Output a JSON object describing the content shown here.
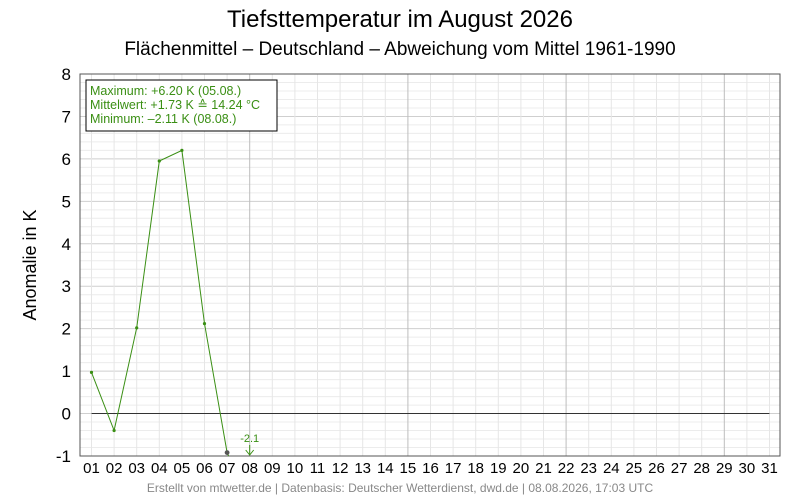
{
  "chart_data": {
    "type": "line",
    "title": "Tiefsttemperatur im August 2026",
    "subtitle": "Flächenmittel – Deutschland – Abweichung vom Mittel 1961-1990",
    "ylabel": "Anomalie in K",
    "xlabel": "",
    "ylim": [
      -1,
      8
    ],
    "yticks": [
      -1,
      0,
      1,
      2,
      3,
      4,
      5,
      6,
      7,
      8
    ],
    "xticks": [
      "01",
      "02",
      "03",
      "04",
      "05",
      "06",
      "07",
      "08",
      "09",
      "10",
      "11",
      "12",
      "13",
      "14",
      "15",
      "16",
      "17",
      "18",
      "19",
      "20",
      "21",
      "22",
      "23",
      "24",
      "25",
      "26",
      "27",
      "28",
      "29",
      "30",
      "31"
    ],
    "grid": true,
    "series": [
      {
        "x": [
          1,
          2,
          3,
          4,
          5,
          6,
          7,
          8
        ],
        "values": [
          0.97,
          -0.4,
          2.02,
          5.95,
          6.2,
          2.12,
          -0.92,
          -2.11
        ],
        "color": "#3a8f14"
      }
    ],
    "stats": {
      "max_line": "Maximum: +6.20 K  (05.08.)",
      "mean_line": "Mittelwert: +1.73 K  ≙  14.24 °C",
      "min_line": "Minimum:   –2.11 K  (08.08.)"
    },
    "annotations": [
      {
        "x": 8,
        "text": "-2.1"
      }
    ]
  },
  "footer": "Erstellt von mtwetter.de | Datenbasis: Deutscher Wetterdienst, dwd.de | 08.08.2026, 17:03 UTC"
}
